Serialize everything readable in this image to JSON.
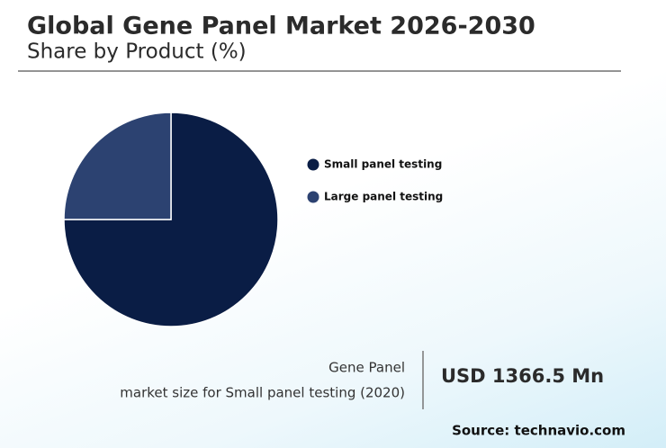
{
  "chart_data": {
    "type": "pie",
    "title": "Global Gene Panel Market 2026-2030",
    "subtitle": "Share by Product (%)",
    "categories": [
      "Small panel testing",
      "Large panel testing"
    ],
    "values": [
      75,
      25
    ],
    "colors": [
      "#0a1d45",
      "#2c4271"
    ]
  },
  "summary": {
    "label_lines": [
      "Gene Panel",
      "market size for Small panel testing (2020)"
    ],
    "value": "USD 1366.5 Mn",
    "source": "Source: technavio.com"
  }
}
